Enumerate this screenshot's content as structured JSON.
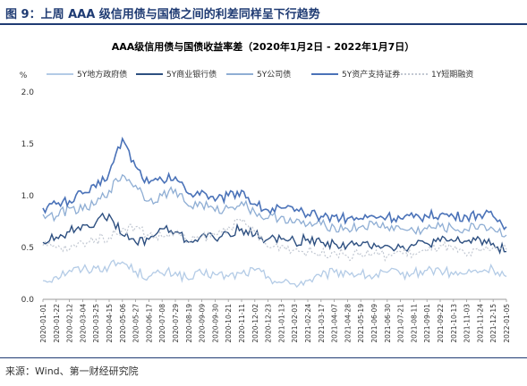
{
  "figure": {
    "title": "图 9：上周 AAA 级信用债与国债之间的利差同样呈下行趋势",
    "source": "来源：Wind、第一财经研究院"
  },
  "chart_data": {
    "type": "line",
    "title": "AAA级信用债与国债收益率差（2020年1月2日 - 2022年1月7日）",
    "unit": "%",
    "ylim": [
      0,
      2.0
    ],
    "yticks": [
      "0.0",
      "0.5",
      "1.0",
      "1.5",
      "2.0"
    ],
    "grid": false,
    "legend_position": "top",
    "x": [
      "2020-01-01",
      "2020-01-22",
      "2020-02-12",
      "2020-03-04",
      "2020-03-25",
      "2020-04-15",
      "2020-05-06",
      "2020-05-27",
      "2020-06-17",
      "2020-07-08",
      "2020-07-29",
      "2020-08-19",
      "2020-09-09",
      "2020-09-30",
      "2020-10-21",
      "2020-11-11",
      "2020-12-02",
      "2020-12-23",
      "2021-01-13",
      "2021-02-03",
      "2021-02-24",
      "2021-03-17",
      "2021-04-07",
      "2021-04-28",
      "2021-05-19",
      "2021-06-09",
      "2021-06-30",
      "2021-07-21",
      "2021-08-11",
      "2021-09-01",
      "2021-09-22",
      "2021-10-13",
      "2021-11-03",
      "2021-11-24",
      "2021-12-15",
      "2022-01-05"
    ],
    "series": [
      {
        "name": "5Y地方政府债",
        "color": "#b3cbe6",
        "width": 1.3,
        "dash": "",
        "values": [
          0.18,
          0.22,
          0.28,
          0.29,
          0.3,
          0.32,
          0.36,
          0.27,
          0.22,
          0.25,
          0.26,
          0.19,
          0.25,
          0.24,
          0.22,
          0.25,
          0.28,
          0.22,
          0.16,
          0.15,
          0.18,
          0.22,
          0.26,
          0.26,
          0.24,
          0.22,
          0.26,
          0.24,
          0.25,
          0.28,
          0.28,
          0.24,
          0.25,
          0.27,
          0.29,
          0.22
        ]
      },
      {
        "name": "5Y商业银行债",
        "color": "#2d4f80",
        "width": 1.4,
        "dash": "",
        "values": [
          0.55,
          0.6,
          0.65,
          0.72,
          0.74,
          0.82,
          0.62,
          0.55,
          0.58,
          0.68,
          0.65,
          0.55,
          0.62,
          0.58,
          0.64,
          0.68,
          0.62,
          0.58,
          0.58,
          0.56,
          0.58,
          0.55,
          0.54,
          0.52,
          0.52,
          0.54,
          0.52,
          0.5,
          0.52,
          0.54,
          0.56,
          0.56,
          0.56,
          0.58,
          0.54,
          0.46
        ]
      },
      {
        "name": "5Y公司债",
        "color": "#8faed4",
        "width": 1.3,
        "dash": "",
        "values": [
          0.82,
          0.8,
          0.88,
          0.86,
          0.92,
          1.05,
          1.2,
          1.1,
          0.95,
          1.0,
          1.06,
          0.9,
          0.92,
          0.85,
          0.88,
          0.94,
          0.84,
          0.78,
          0.8,
          0.74,
          0.72,
          0.72,
          0.7,
          0.68,
          0.7,
          0.72,
          0.7,
          0.68,
          0.66,
          0.68,
          0.7,
          0.68,
          0.67,
          0.72,
          0.68,
          0.62
        ]
      },
      {
        "name": "5Y资产支持证券",
        "color": "#4a72b8",
        "width": 1.6,
        "dash": "",
        "values": [
          0.88,
          0.92,
          0.95,
          1.02,
          1.08,
          1.22,
          1.55,
          1.28,
          1.12,
          1.15,
          1.18,
          1.02,
          1.05,
          0.95,
          1.0,
          1.05,
          0.92,
          0.86,
          0.88,
          0.85,
          0.82,
          0.8,
          0.8,
          0.78,
          0.78,
          0.8,
          0.8,
          0.78,
          0.79,
          0.8,
          0.82,
          0.8,
          0.8,
          0.82,
          0.8,
          0.7
        ]
      },
      {
        "name": "1Y短期融资",
        "color": "#c2c8d2",
        "width": 1.2,
        "dash": "2,2",
        "values": [
          0.52,
          0.5,
          0.48,
          0.55,
          0.58,
          0.6,
          0.68,
          0.7,
          0.62,
          0.6,
          0.65,
          0.55,
          0.6,
          0.62,
          0.7,
          0.75,
          0.65,
          0.5,
          0.52,
          0.48,
          0.46,
          0.44,
          0.46,
          0.42,
          0.44,
          0.44,
          0.42,
          0.46,
          0.44,
          0.46,
          0.52,
          0.48,
          0.42,
          0.46,
          0.5,
          0.48
        ]
      }
    ]
  }
}
